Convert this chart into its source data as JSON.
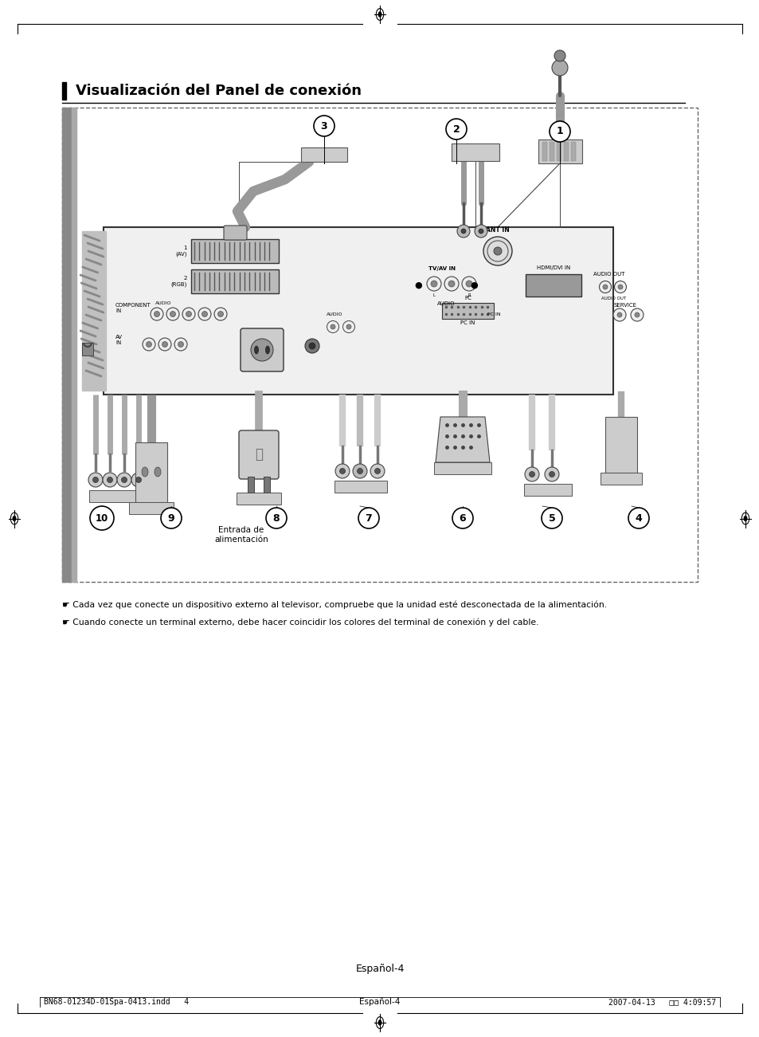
{
  "bg_color": "#ffffff",
  "page_width": 9.54,
  "page_height": 13.01,
  "title": "Visualización del Panel de conexión",
  "note1": "☛ Cada vez que conecte un dispositivo externo al televisor, compruebe que la unidad esté desconectada de la alimentación.",
  "note2": "☛ Cuando conecte un terminal externo, debe hacer coincidir los colores del terminal de conexión y del cable.",
  "notes_fontsize": 7.8,
  "footer_left": "BN68-01234D-01Spa-0413.indd   4",
  "footer_center": "Español-4",
  "footer_right": "2007-04-13   □□ 4:09:57",
  "footer_fontsize": 7.0,
  "entrada_label": "Entrada de\nalimentación",
  "label_fontsize": 7.5,
  "page_espanol": "Español-4"
}
